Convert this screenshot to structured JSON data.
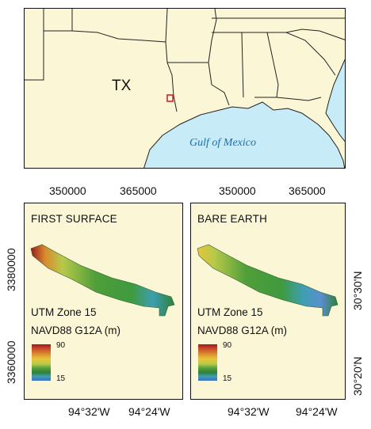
{
  "overview_map": {
    "state_label": "TX",
    "water_label": "Gulf of Mexico",
    "colors": {
      "land": "#fbf7d6",
      "water": "#c7ecf7",
      "border": "#222222",
      "study_area_box": "#d2232a"
    }
  },
  "panels": [
    {
      "title": "FIRST SURFACE",
      "zone": "UTM Zone 15",
      "legend_title": "NAVD88 G12A (m)",
      "legend_max": "90",
      "legend_min": "15",
      "top_ticks": [
        "350000",
        "365000"
      ],
      "bottom_ticks": [
        "94°32'W",
        "94°24'W"
      ],
      "left_ticks": [
        "3380000",
        "3360000"
      ]
    },
    {
      "title": "BARE EARTH",
      "zone": "UTM Zone 15",
      "legend_title": "NAVD88 G12A (m)",
      "legend_max": "90",
      "legend_min": "15",
      "top_ticks": [
        "350000",
        "365000"
      ],
      "bottom_ticks": [
        "94°32'W",
        "94°24'W"
      ],
      "right_ticks": [
        "30°30'N",
        "30°20'N"
      ]
    }
  ],
  "elevation_ramp": [
    "#9b1c1c",
    "#c94a2b",
    "#d98b2e",
    "#e8c53a",
    "#b7c94a",
    "#4f9e3a",
    "#2f7f3a",
    "#3d9fb0",
    "#3b6fc9"
  ]
}
